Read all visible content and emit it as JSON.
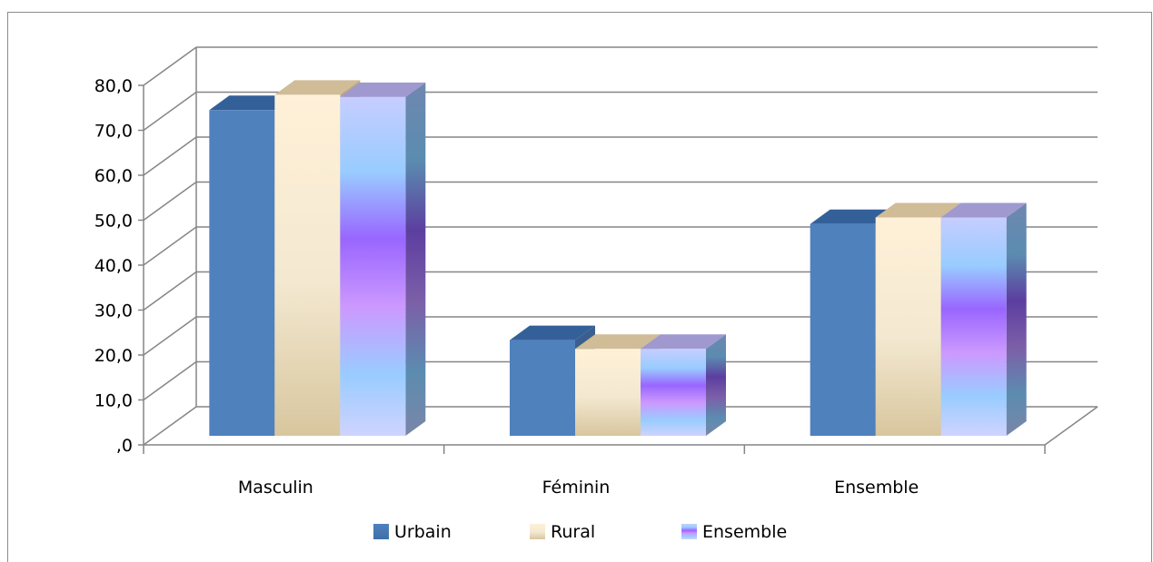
{
  "chart_data": {
    "type": "bar",
    "title": "",
    "xlabel": "",
    "ylabel": "",
    "categories": [
      "Masculin",
      "Féminin",
      "Ensemble"
    ],
    "series": [
      {
        "name": "Urbain",
        "values": [
          76.0,
          23.5,
          50.0
        ]
      },
      {
        "name": "Rural",
        "values": [
          79.5,
          21.5,
          51.5
        ]
      },
      {
        "name": "Ensemble",
        "values": [
          79.0,
          21.5,
          51.5
        ]
      }
    ],
    "ylim": [
      0,
      80
    ],
    "yticks": [
      ",0",
      "10,0",
      "20,0",
      "30,0",
      "40,0",
      "50,0",
      "60,0",
      "70,0",
      "80,0"
    ],
    "grid": true,
    "legend_position": "bottom",
    "three_d": true,
    "colors": {
      "urbain": "#4f81bd",
      "rural_light": "#fff0d2",
      "rural_dark": "#d8c6a0",
      "ensemble_light": "#c8d0ff",
      "ensemble_mid": "#9966ff",
      "ensemble_blue": "#99ccff"
    }
  }
}
